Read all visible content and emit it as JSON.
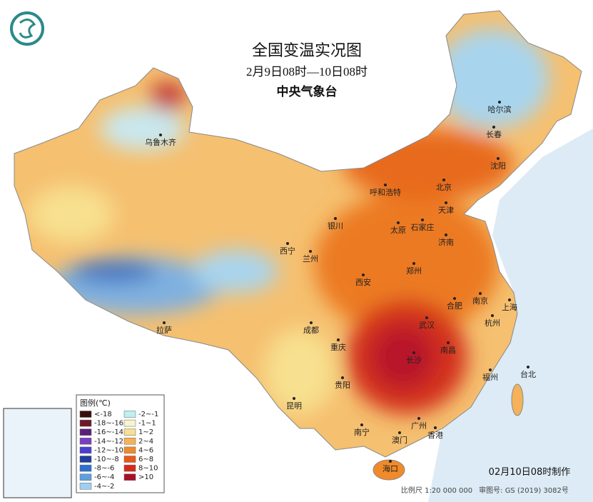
{
  "header": {
    "title": "全国变温实况图",
    "subtitle": "2月9日08时—10日08时",
    "agency": "中央气象台"
  },
  "legend": {
    "title": "图例(℃)",
    "items": [
      {
        "label": "<-18",
        "color": "#3a0d0d"
      },
      {
        "label": "-18~-16",
        "color": "#6b1a2a"
      },
      {
        "label": "-16~-14",
        "color": "#5a1f7a"
      },
      {
        "label": "-14~-12",
        "color": "#7a3fc0"
      },
      {
        "label": "-12~-10",
        "color": "#4b3fd0"
      },
      {
        "label": "-10~-8",
        "color": "#1f3f9a"
      },
      {
        "label": "-8~-6",
        "color": "#2f6fd0"
      },
      {
        "label": "-6~-4",
        "color": "#5f9fe0"
      },
      {
        "label": "-4~-2",
        "color": "#9fcff0"
      },
      {
        "label": "-2~-1",
        "color": "#bfefef"
      },
      {
        "label": "-1~1",
        "color": "#f5f5d0"
      },
      {
        "label": "1~2",
        "color": "#f7e08f"
      },
      {
        "label": "2~4",
        "color": "#f5b25a"
      },
      {
        "label": "4~6",
        "color": "#f08a2a"
      },
      {
        "label": "6~8",
        "color": "#e65a1a"
      },
      {
        "label": "8~10",
        "color": "#d42a1a"
      },
      {
        "label": ">10",
        "color": "#a8102a"
      }
    ]
  },
  "cities": [
    "乌鲁木齐",
    "哈尔滨",
    "长春",
    "沈阳",
    "北京",
    "呼和浩特",
    "天津",
    "银川",
    "太原",
    "石家庄",
    "济南",
    "西宁",
    "兰州",
    "郑州",
    "西安",
    "合肥",
    "南京",
    "上海",
    "杭州",
    "武汉",
    "成都",
    "拉萨",
    "重庆",
    "南昌",
    "长沙",
    "福州",
    "台北",
    "贵阳",
    "昆明",
    "南宁",
    "广州",
    "香港",
    "澳门",
    "海口"
  ],
  "footer": {
    "made": "02月10日08时制作",
    "scale": "比例尺 1:20 000 000",
    "approval": "审图号: GS (2019) 3082号"
  }
}
